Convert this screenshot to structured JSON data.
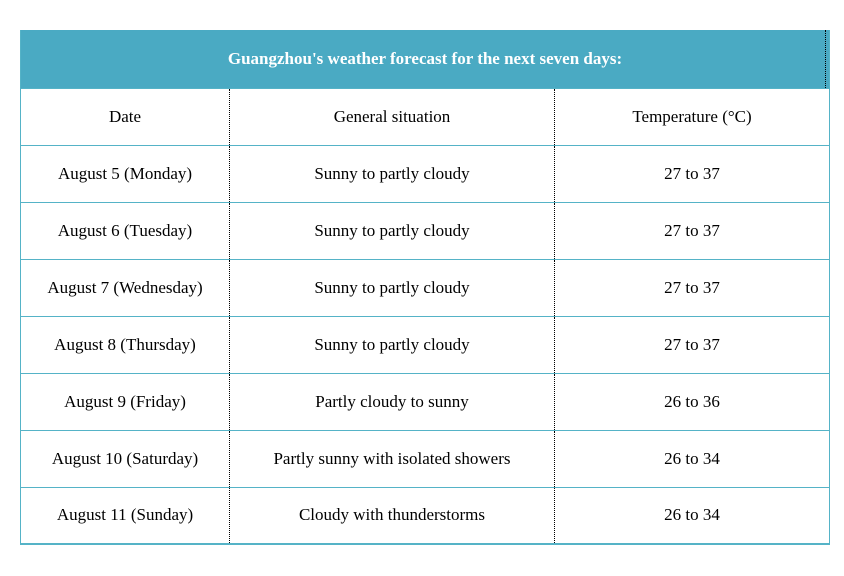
{
  "table": {
    "title": "Guangzhou's weather forecast for the next seven days:",
    "columns": [
      "Date",
      "General situation",
      "Temperature (°C)"
    ],
    "rows": [
      [
        "August 5 (Monday)",
        "Sunny to partly cloudy",
        "27 to 37"
      ],
      [
        "August 6 (Tuesday)",
        "Sunny to partly cloudy",
        "27 to 37"
      ],
      [
        "August 7 (Wednesday)",
        "Sunny to partly cloudy",
        "27 to 37"
      ],
      [
        "August 8 (Thursday)",
        "Sunny to partly cloudy",
        "27 to 37"
      ],
      [
        "August 9 (Friday)",
        "Partly cloudy to sunny",
        "26 to 36"
      ],
      [
        "August 10 (Saturday)",
        "Partly sunny with isolated showers",
        "26 to 34"
      ],
      [
        "August 11 (Sunday)",
        "Cloudy with thunderstorms",
        "26 to 34"
      ]
    ],
    "colors": {
      "header_bg": "#4aaac3",
      "header_text": "#ffffff",
      "row_border": "#55b3c7",
      "column_divider": "#000000",
      "body_text": "#000000",
      "page_bg": "#ffffff"
    }
  }
}
